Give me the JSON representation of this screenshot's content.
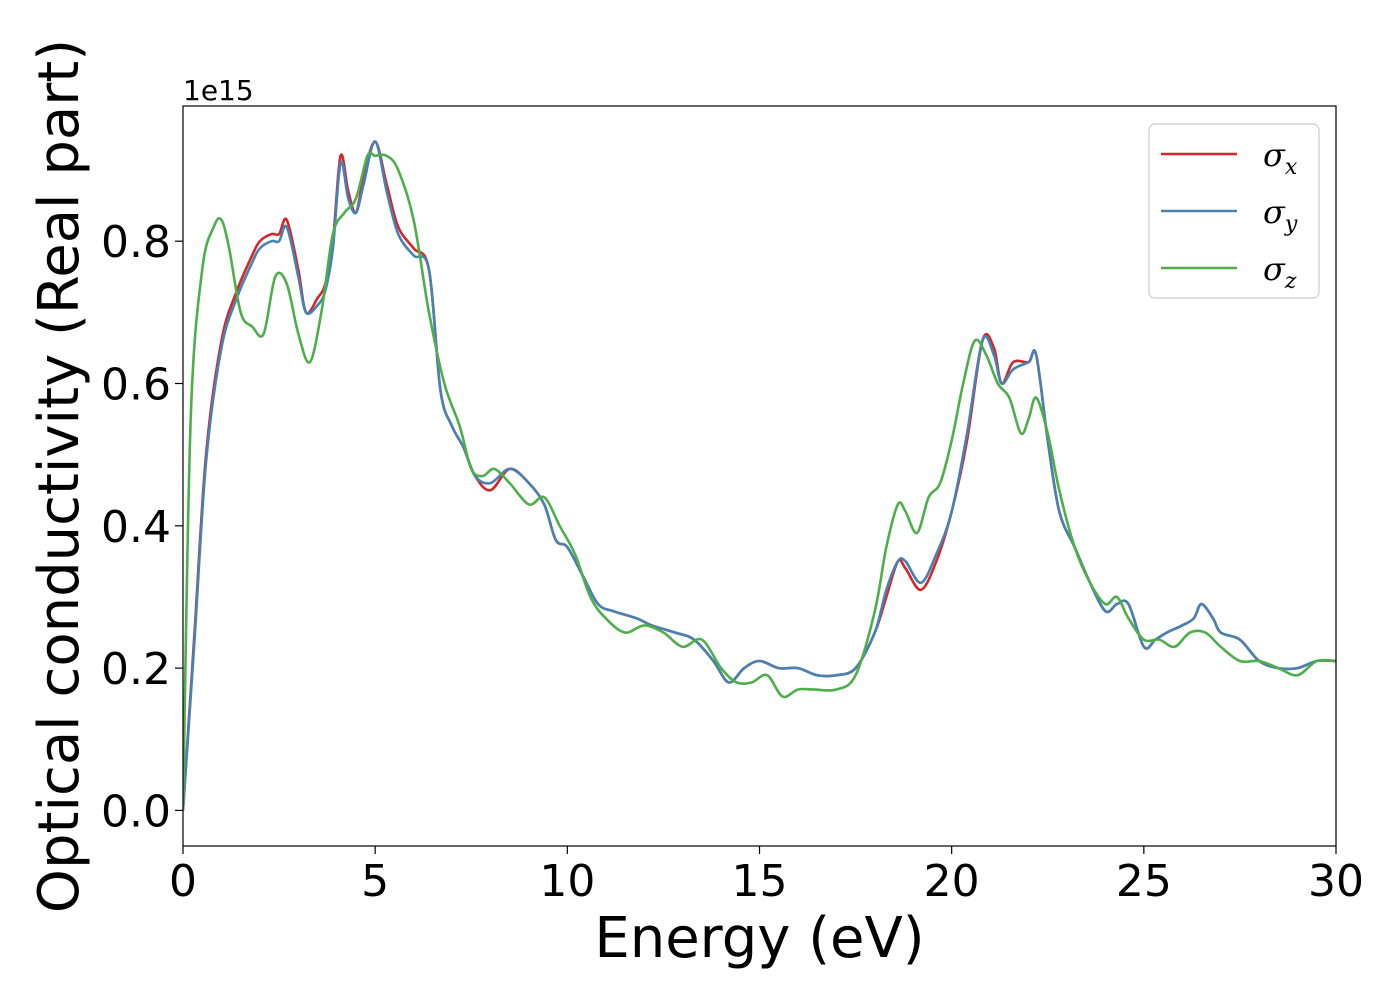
{
  "chart_data": {
    "type": "line",
    "xlabel": "Energy (eV)",
    "ylabel": "Optical conductivity (Real part)",
    "y_offset_label": "1e15",
    "xlim": [
      0,
      30
    ],
    "ylim": [
      -0.05,
      0.99
    ],
    "x_ticks": [
      0,
      5,
      10,
      15,
      20,
      25,
      30
    ],
    "y_ticks": [
      0.0,
      0.2,
      0.4,
      0.6,
      0.8
    ],
    "x_tick_labels": [
      "0",
      "5",
      "10",
      "15",
      "20",
      "25",
      "30"
    ],
    "y_tick_labels": [
      "0.0",
      "0.2",
      "0.4",
      "0.6",
      "0.8"
    ],
    "grid": false,
    "legend_position": "top-right",
    "series": [
      {
        "name": "σ",
        "subscript": "x",
        "color": "#d62728",
        "x": [
          0,
          0.3,
          0.6,
          1.0,
          1.4,
          1.8,
          2.0,
          2.3,
          2.5,
          2.7,
          3.0,
          3.2,
          3.5,
          3.7,
          3.9,
          4.1,
          4.3,
          4.5,
          4.7,
          5.0,
          5.3,
          5.6,
          6.0,
          6.4,
          6.7,
          7.0,
          7.3,
          7.6,
          8.0,
          8.5,
          9.0,
          9.4,
          9.7,
          10.0,
          10.4,
          10.8,
          11.2,
          11.8,
          12.2,
          12.8,
          13.3,
          13.8,
          14.2,
          14.6,
          15.0,
          15.5,
          16.0,
          16.5,
          17.0,
          17.5,
          18.0,
          18.3,
          18.6,
          18.8,
          19.2,
          19.6,
          20.0,
          20.4,
          20.8,
          21.1,
          21.3,
          21.6,
          22.0,
          22.2,
          22.5,
          22.8,
          23.2,
          23.6,
          24.0,
          24.3,
          24.6,
          25.0,
          25.3,
          25.6,
          26.0,
          26.3,
          26.5,
          26.8,
          27.0,
          27.5,
          28.0,
          28.5,
          29.0,
          29.5,
          30.0
        ],
        "values": [
          0.0,
          0.25,
          0.5,
          0.66,
          0.73,
          0.78,
          0.8,
          0.81,
          0.81,
          0.83,
          0.76,
          0.7,
          0.72,
          0.74,
          0.8,
          0.92,
          0.87,
          0.84,
          0.89,
          0.94,
          0.88,
          0.82,
          0.79,
          0.76,
          0.59,
          0.54,
          0.51,
          0.47,
          0.45,
          0.48,
          0.46,
          0.43,
          0.38,
          0.37,
          0.33,
          0.29,
          0.28,
          0.27,
          0.26,
          0.25,
          0.24,
          0.21,
          0.18,
          0.2,
          0.21,
          0.2,
          0.2,
          0.19,
          0.19,
          0.2,
          0.25,
          0.3,
          0.35,
          0.34,
          0.31,
          0.35,
          0.42,
          0.52,
          0.66,
          0.65,
          0.6,
          0.63,
          0.63,
          0.64,
          0.52,
          0.42,
          0.37,
          0.32,
          0.28,
          0.29,
          0.29,
          0.23,
          0.24,
          0.25,
          0.26,
          0.27,
          0.29,
          0.27,
          0.25,
          0.24,
          0.21,
          0.2,
          0.2,
          0.21,
          0.21
        ]
      },
      {
        "name": "σ",
        "subscript": "y",
        "color": "#4682b4",
        "x": [
          0,
          0.3,
          0.6,
          1.0,
          1.4,
          1.8,
          2.0,
          2.3,
          2.5,
          2.7,
          3.0,
          3.2,
          3.5,
          3.7,
          3.9,
          4.1,
          4.3,
          4.5,
          4.7,
          5.0,
          5.3,
          5.6,
          6.0,
          6.4,
          6.7,
          7.0,
          7.3,
          7.6,
          8.0,
          8.5,
          9.0,
          9.4,
          9.7,
          10.0,
          10.4,
          10.8,
          11.2,
          11.8,
          12.2,
          12.8,
          13.3,
          13.8,
          14.2,
          14.6,
          15.0,
          15.5,
          16.0,
          16.5,
          17.0,
          17.5,
          18.0,
          18.3,
          18.6,
          18.8,
          19.2,
          19.6,
          20.0,
          20.4,
          20.8,
          21.1,
          21.3,
          21.6,
          22.0,
          22.2,
          22.5,
          22.8,
          23.2,
          23.6,
          24.0,
          24.3,
          24.6,
          25.0,
          25.3,
          25.6,
          26.0,
          26.3,
          26.5,
          26.8,
          27.0,
          27.5,
          28.0,
          28.5,
          29.0,
          29.5,
          30.0
        ],
        "values": [
          0.0,
          0.24,
          0.49,
          0.65,
          0.72,
          0.77,
          0.79,
          0.8,
          0.8,
          0.82,
          0.75,
          0.7,
          0.71,
          0.73,
          0.79,
          0.91,
          0.86,
          0.84,
          0.88,
          0.94,
          0.87,
          0.81,
          0.78,
          0.76,
          0.59,
          0.54,
          0.51,
          0.47,
          0.46,
          0.48,
          0.46,
          0.43,
          0.38,
          0.37,
          0.33,
          0.29,
          0.28,
          0.27,
          0.26,
          0.25,
          0.24,
          0.21,
          0.18,
          0.2,
          0.21,
          0.2,
          0.2,
          0.19,
          0.19,
          0.2,
          0.25,
          0.31,
          0.35,
          0.35,
          0.32,
          0.36,
          0.42,
          0.53,
          0.66,
          0.64,
          0.6,
          0.62,
          0.63,
          0.64,
          0.52,
          0.42,
          0.37,
          0.32,
          0.28,
          0.29,
          0.29,
          0.23,
          0.24,
          0.25,
          0.26,
          0.27,
          0.29,
          0.27,
          0.25,
          0.24,
          0.21,
          0.2,
          0.2,
          0.21,
          0.21
        ]
      },
      {
        "name": "σ",
        "subscript": "z",
        "color": "#4daf4a",
        "x": [
          0,
          0.2,
          0.5,
          0.8,
          1.0,
          1.2,
          1.5,
          1.8,
          2.1,
          2.4,
          2.7,
          3.0,
          3.3,
          3.6,
          3.9,
          4.2,
          4.5,
          4.8,
          5.0,
          5.3,
          5.6,
          6.0,
          6.4,
          6.8,
          7.2,
          7.5,
          7.8,
          8.1,
          8.5,
          9.0,
          9.4,
          9.8,
          10.2,
          10.6,
          11.0,
          11.5,
          12.0,
          12.5,
          13.0,
          13.5,
          14.0,
          14.4,
          14.8,
          15.2,
          15.6,
          16.0,
          16.4,
          17.0,
          17.5,
          18.0,
          18.3,
          18.6,
          18.8,
          19.1,
          19.4,
          19.7,
          20.0,
          20.3,
          20.6,
          20.9,
          21.2,
          21.5,
          21.8,
          22.0,
          22.2,
          22.5,
          22.8,
          23.2,
          23.6,
          24.0,
          24.3,
          24.6,
          25.0,
          25.4,
          25.8,
          26.2,
          26.6,
          27.0,
          27.5,
          28.0,
          28.5,
          29.0,
          29.5,
          30.0
        ],
        "values": [
          0.0,
          0.55,
          0.76,
          0.82,
          0.83,
          0.79,
          0.7,
          0.68,
          0.67,
          0.75,
          0.74,
          0.67,
          0.63,
          0.7,
          0.81,
          0.84,
          0.86,
          0.92,
          0.92,
          0.92,
          0.9,
          0.83,
          0.7,
          0.6,
          0.54,
          0.48,
          0.47,
          0.48,
          0.46,
          0.43,
          0.44,
          0.4,
          0.36,
          0.3,
          0.27,
          0.25,
          0.26,
          0.25,
          0.23,
          0.24,
          0.2,
          0.18,
          0.18,
          0.19,
          0.16,
          0.17,
          0.17,
          0.17,
          0.19,
          0.28,
          0.37,
          0.43,
          0.42,
          0.39,
          0.44,
          0.46,
          0.52,
          0.6,
          0.66,
          0.64,
          0.6,
          0.58,
          0.53,
          0.55,
          0.58,
          0.53,
          0.45,
          0.37,
          0.32,
          0.29,
          0.3,
          0.27,
          0.24,
          0.24,
          0.23,
          0.25,
          0.25,
          0.23,
          0.21,
          0.21,
          0.2,
          0.19,
          0.21,
          0.21
        ]
      }
    ]
  }
}
